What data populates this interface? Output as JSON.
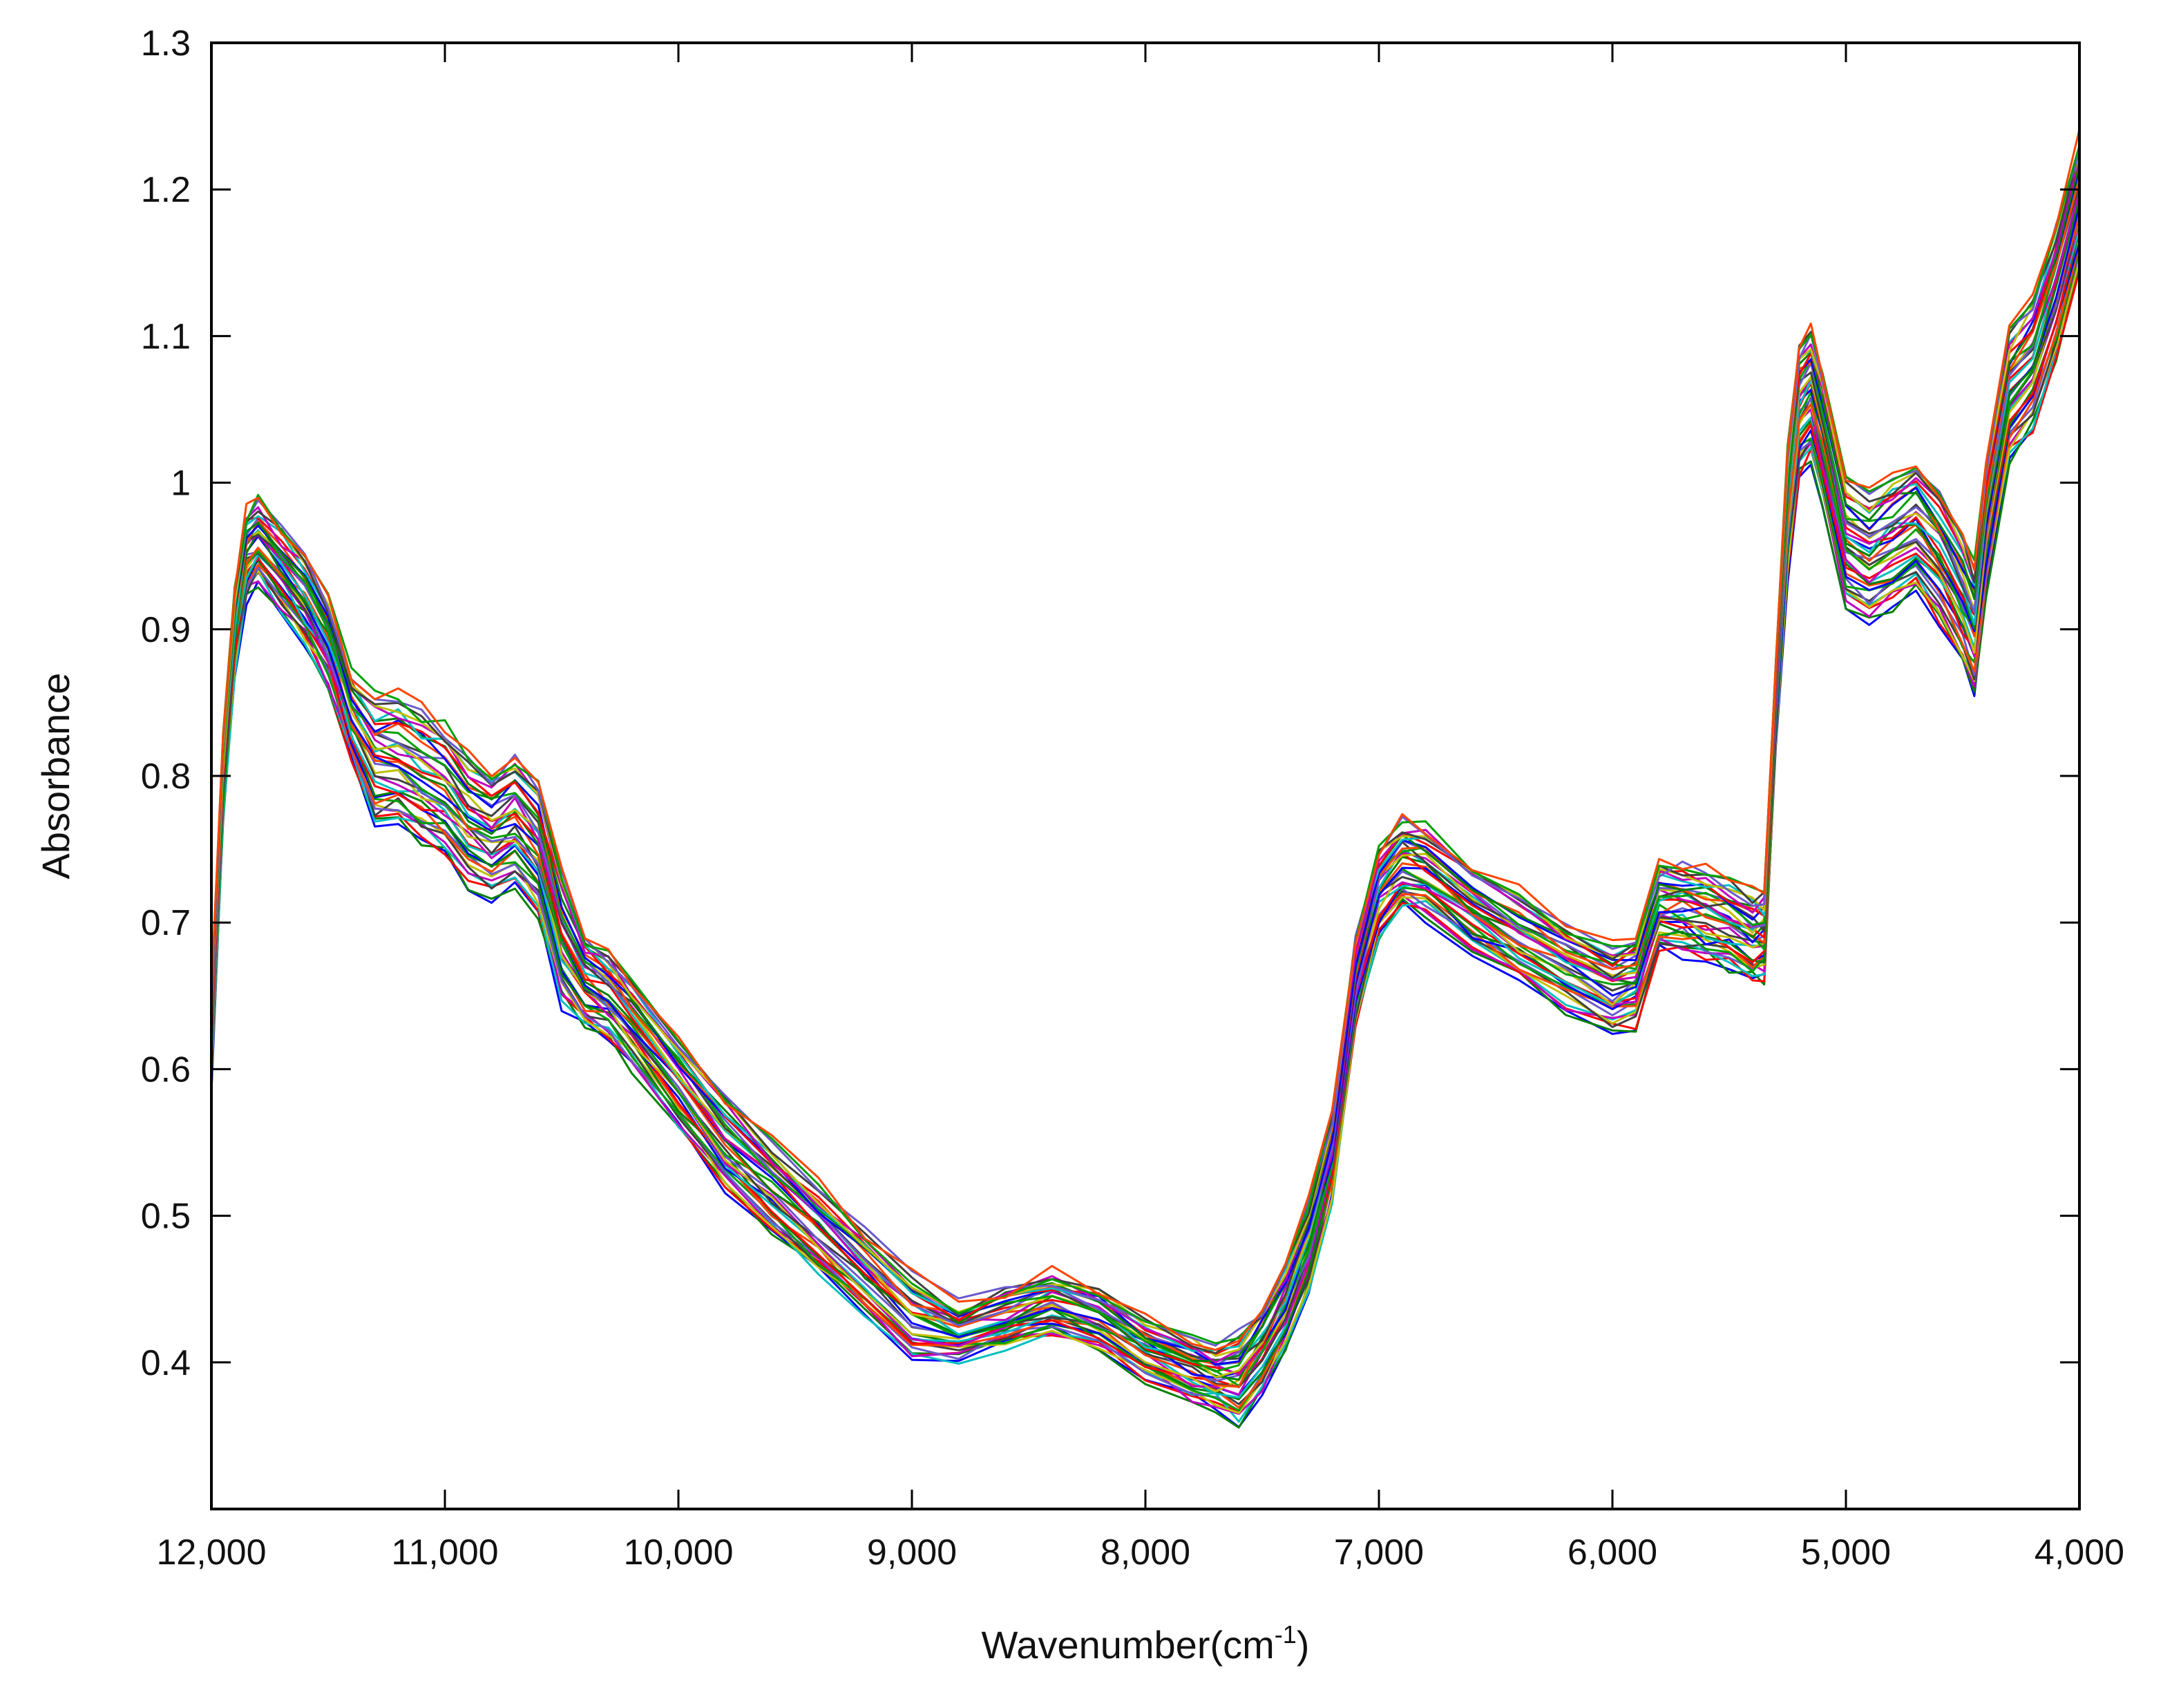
{
  "chart_data": {
    "type": "line",
    "title": "",
    "xlabel": "Wavenumber(cm",
    "xlabel_sup": "-1",
    "xlabel_close": ")",
    "ylabel": "Absorbance",
    "xlim": [
      12000,
      4000
    ],
    "ylim": [
      0.3,
      1.3
    ],
    "x_reversed": true,
    "grid": false,
    "legend": "none",
    "x_ticks": [
      12000,
      11000,
      10000,
      9000,
      8000,
      7000,
      6000,
      5000,
      4000
    ],
    "x_tick_labels": [
      "12,000",
      "11,000",
      "10,000",
      "9,000",
      "8,000",
      "7,000",
      "6,000",
      "5,000",
      "4,000"
    ],
    "y_ticks": [
      0.4,
      0.5,
      0.6,
      0.7,
      0.8,
      0.9,
      1,
      1.1,
      1.2,
      1.3
    ],
    "y_tick_labels": [
      "0.4",
      "0.5",
      "0.6",
      "0.7",
      "0.8",
      "0.9",
      "1",
      "1.1",
      "1.2",
      "1.3"
    ],
    "series_count": 40,
    "series_colors": [
      "#0000ff",
      "#008000",
      "#ff0000",
      "#00bfbf",
      "#bf00bf",
      "#bfbf00",
      "#404040",
      "#6a5acd",
      "#00a000",
      "#ff4500"
    ],
    "representative_series": {
      "x": [
        12000,
        11950,
        11900,
        11850,
        11800,
        11700,
        11600,
        11500,
        11400,
        11300,
        11200,
        11100,
        11000,
        10900,
        10800,
        10700,
        10600,
        10500,
        10400,
        10300,
        10200,
        10000,
        9800,
        9600,
        9400,
        9200,
        9000,
        8800,
        8600,
        8400,
        8200,
        8000,
        7800,
        7700,
        7600,
        7500,
        7400,
        7300,
        7200,
        7100,
        7000,
        6900,
        6800,
        6600,
        6400,
        6200,
        6000,
        5900,
        5800,
        5700,
        5600,
        5500,
        5400,
        5350,
        5300,
        5250,
        5200,
        5150,
        5100,
        5000,
        4900,
        4800,
        4700,
        4600,
        4500,
        4450,
        4400,
        4300,
        4200,
        4100,
        4000
      ],
      "y": [
        0.62,
        0.8,
        0.9,
        0.95,
        0.96,
        0.94,
        0.92,
        0.89,
        0.84,
        0.81,
        0.81,
        0.8,
        0.79,
        0.77,
        0.76,
        0.77,
        0.75,
        0.69,
        0.66,
        0.65,
        0.63,
        0.59,
        0.55,
        0.52,
        0.49,
        0.46,
        0.43,
        0.42,
        0.43,
        0.44,
        0.43,
        0.41,
        0.395,
        0.39,
        0.39,
        0.41,
        0.44,
        0.48,
        0.54,
        0.66,
        0.72,
        0.74,
        0.735,
        0.71,
        0.69,
        0.67,
        0.655,
        0.66,
        0.71,
        0.71,
        0.705,
        0.7,
        0.69,
        0.69,
        0.85,
        0.98,
        1.05,
        1.06,
        1.03,
        0.96,
        0.95,
        0.96,
        0.97,
        0.95,
        0.92,
        0.9,
        0.97,
        1.06,
        1.08,
        1.13,
        1.19
      ]
    }
  }
}
